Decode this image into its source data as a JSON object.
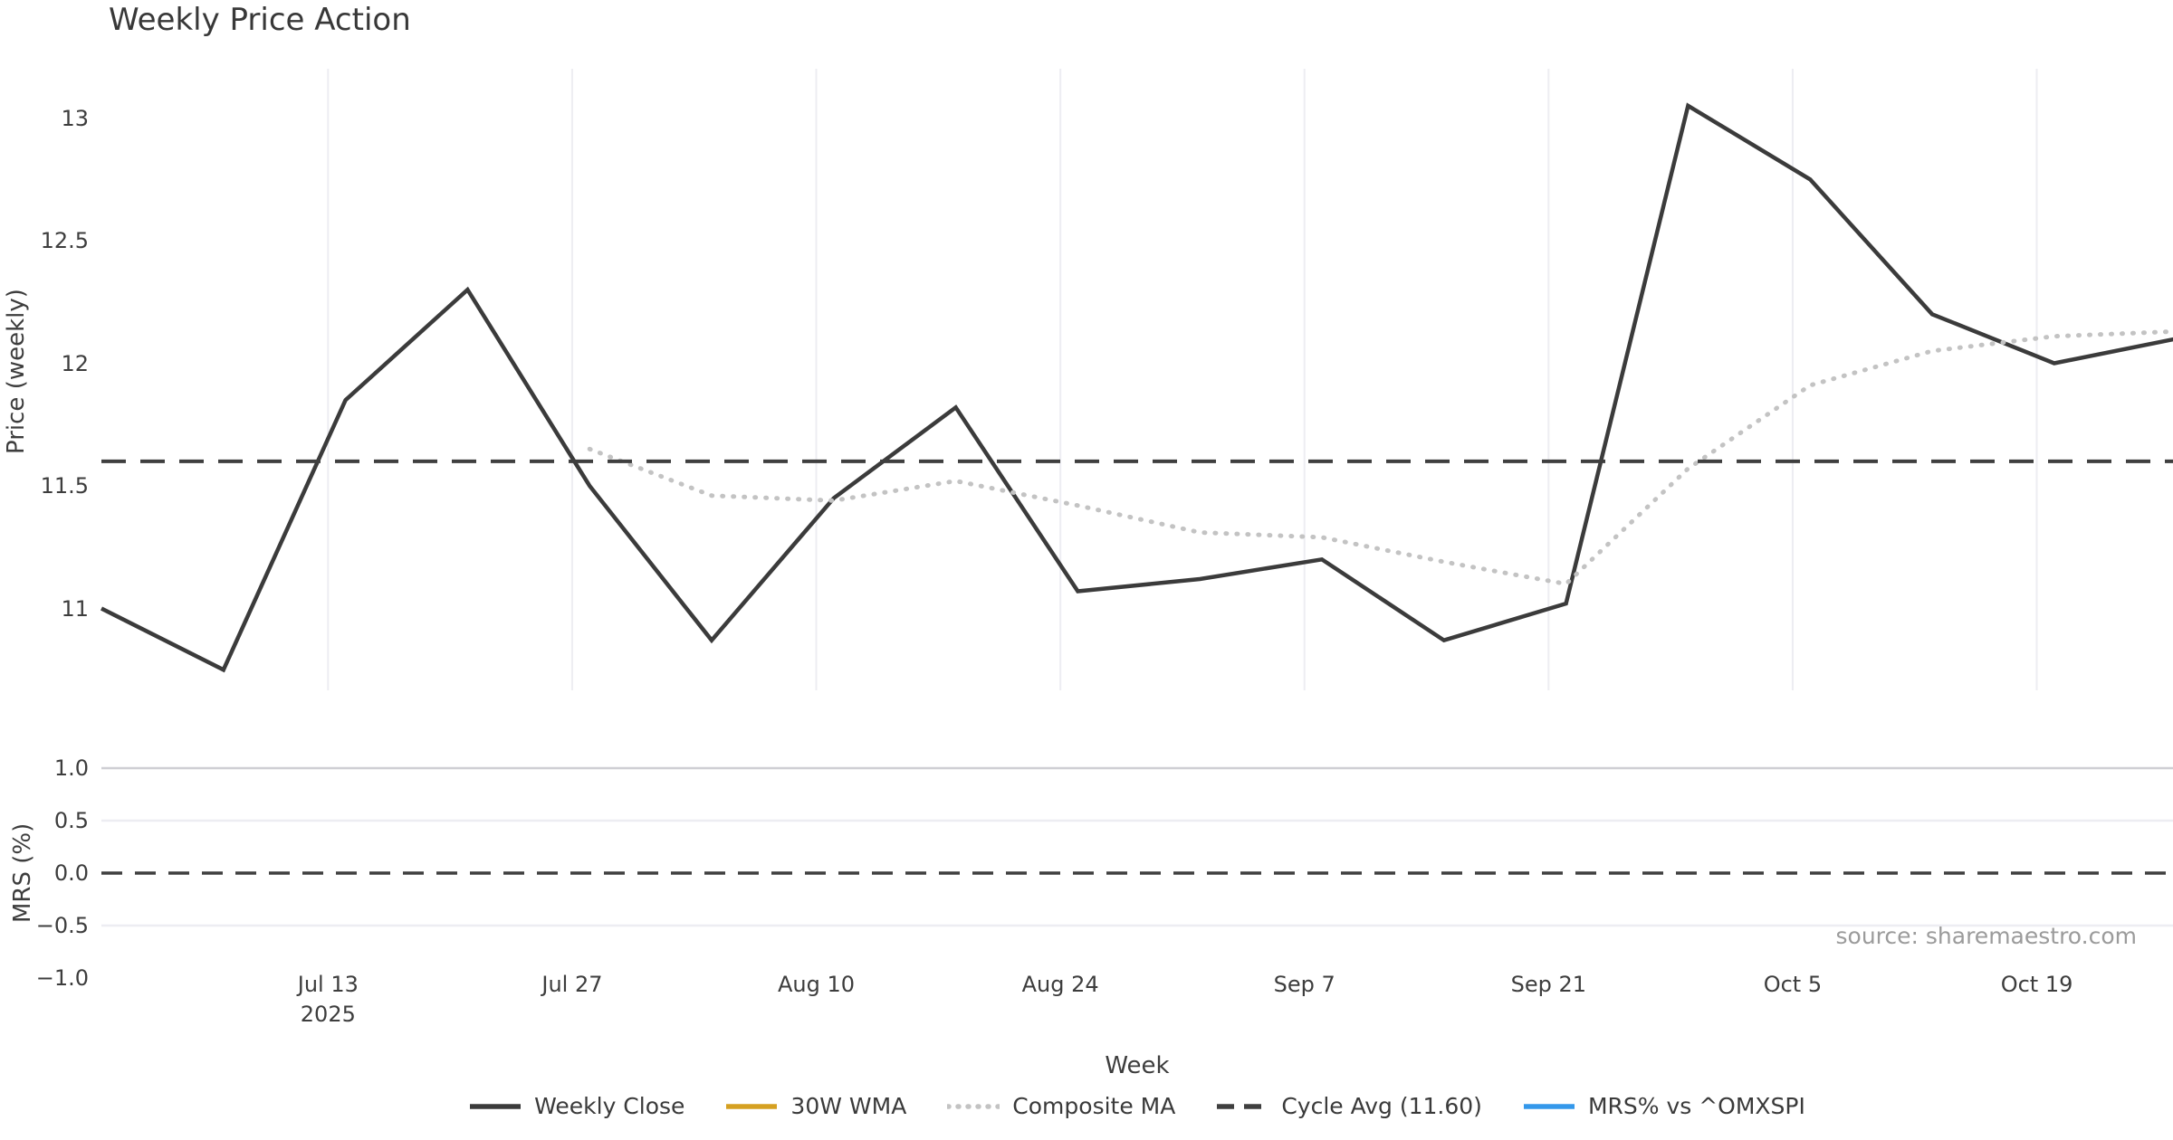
{
  "source_note": "source: sharemaestro.com",
  "chart_data": [
    {
      "type": "line",
      "title": "Weekly Price Action",
      "xlabel": "Week",
      "ylabel": "Price (weekly)",
      "ylim": [
        10.67,
        13.19
      ],
      "xlim_weeks": [
        0,
        16.98
      ],
      "grid": "vertical-only",
      "yticks": [
        {
          "label": "13",
          "value": 13,
          "gridline": "none"
        },
        {
          "label": "12.5",
          "value": 12.5,
          "gridline": "none"
        },
        {
          "label": "12",
          "value": 12,
          "gridline": "none"
        },
        {
          "label": "11.5",
          "value": 11.5,
          "gridline": "none"
        },
        {
          "label": "11",
          "value": 11,
          "gridline": "none"
        }
      ],
      "xticks": [
        {
          "label": "Jul 13",
          "sublabel": "2025",
          "week": 1.8571
        },
        {
          "label": "Jul 27",
          "week": 3.8571
        },
        {
          "label": "Aug 10",
          "week": 5.8571
        },
        {
          "label": "Aug 24",
          "week": 7.8571
        },
        {
          "label": "Sep 7",
          "week": 9.8571
        },
        {
          "label": "Sep 21",
          "week": 11.8571
        },
        {
          "label": "Oct 5",
          "week": 13.8571
        },
        {
          "label": "Oct 19",
          "week": 15.8571
        }
      ],
      "series": [
        {
          "name": "Weekly Close",
          "style": "solid",
          "color": "#3b3b3b",
          "width": 4.5,
          "start_week": 0,
          "step_weeks": 1,
          "values": [
            11.0,
            10.75,
            11.85,
            12.3,
            11.5,
            10.87,
            11.45,
            11.82,
            11.07,
            11.12,
            11.2,
            10.87,
            11.02,
            13.05,
            12.75,
            12.2,
            12.0,
            12.1
          ]
        },
        {
          "name": "30W WMA",
          "style": "solid",
          "color": "#d5a021",
          "width": 4.5,
          "start_week": 0,
          "step_weeks": 1,
          "values": [],
          "note": "in legend only; no visible data drawn in plot"
        },
        {
          "name": "Composite MA",
          "style": "dotted",
          "color": "#c3c3c3",
          "width": 5,
          "start_week": 4,
          "step_weeks": 1,
          "values": [
            11.65,
            11.46,
            11.44,
            11.52,
            11.42,
            11.31,
            11.29,
            11.19,
            11.1,
            11.57,
            11.91,
            12.05,
            12.11,
            12.13
          ]
        },
        {
          "name": "Cycle Avg (11.60)",
          "style": "dashed",
          "color": "#3f3f3f",
          "width": 4,
          "constant": 11.6
        }
      ]
    },
    {
      "type": "line",
      "xlabel": "Week",
      "ylabel": "MRS (%)",
      "ylim": [
        -1.05,
        1.05
      ],
      "grid": "horizontal-only",
      "yticks": [
        {
          "label": "1.0",
          "value": 1.0,
          "gridline": "medium"
        },
        {
          "label": "0.5",
          "value": 0.5,
          "gridline": "light"
        },
        {
          "label": "0.0",
          "value": 0.0,
          "gridline": "none"
        },
        {
          "label": "−0.5",
          "value": -0.5,
          "gridline": "light"
        },
        {
          "label": "−1.0",
          "value": -1.0,
          "gridline": "none"
        }
      ],
      "zero_line": {
        "style": "dashed",
        "color": "#3f3f3f",
        "value": 0.0,
        "width": 3.5
      },
      "series": [
        {
          "name": "MRS% vs ^OMXSPI",
          "style": "solid",
          "color": "#3498eb",
          "width": 4.5,
          "values": [],
          "note": "in legend only; no visible data drawn in plot"
        }
      ]
    }
  ],
  "legend": {
    "position": "bottom-center",
    "items": [
      {
        "label": "Weekly Close",
        "style": "solid",
        "color": "#3b3b3b"
      },
      {
        "label": "30W WMA",
        "style": "solid",
        "color": "#d5a021"
      },
      {
        "label": "Composite MA",
        "style": "dotted",
        "color": "#c3c3c3"
      },
      {
        "label": "Cycle Avg (11.60)",
        "style": "dashed",
        "color": "#3f3f3f"
      },
      {
        "label": "MRS% vs ^OMXSPI",
        "style": "solid",
        "color": "#3498eb"
      }
    ]
  },
  "colors": {
    "background": "#ffffff",
    "grid_light": "#ededf2",
    "grid_medium": "#cfcfd4",
    "text": "#3d3d3d",
    "source_text": "#9b9b9b"
  }
}
